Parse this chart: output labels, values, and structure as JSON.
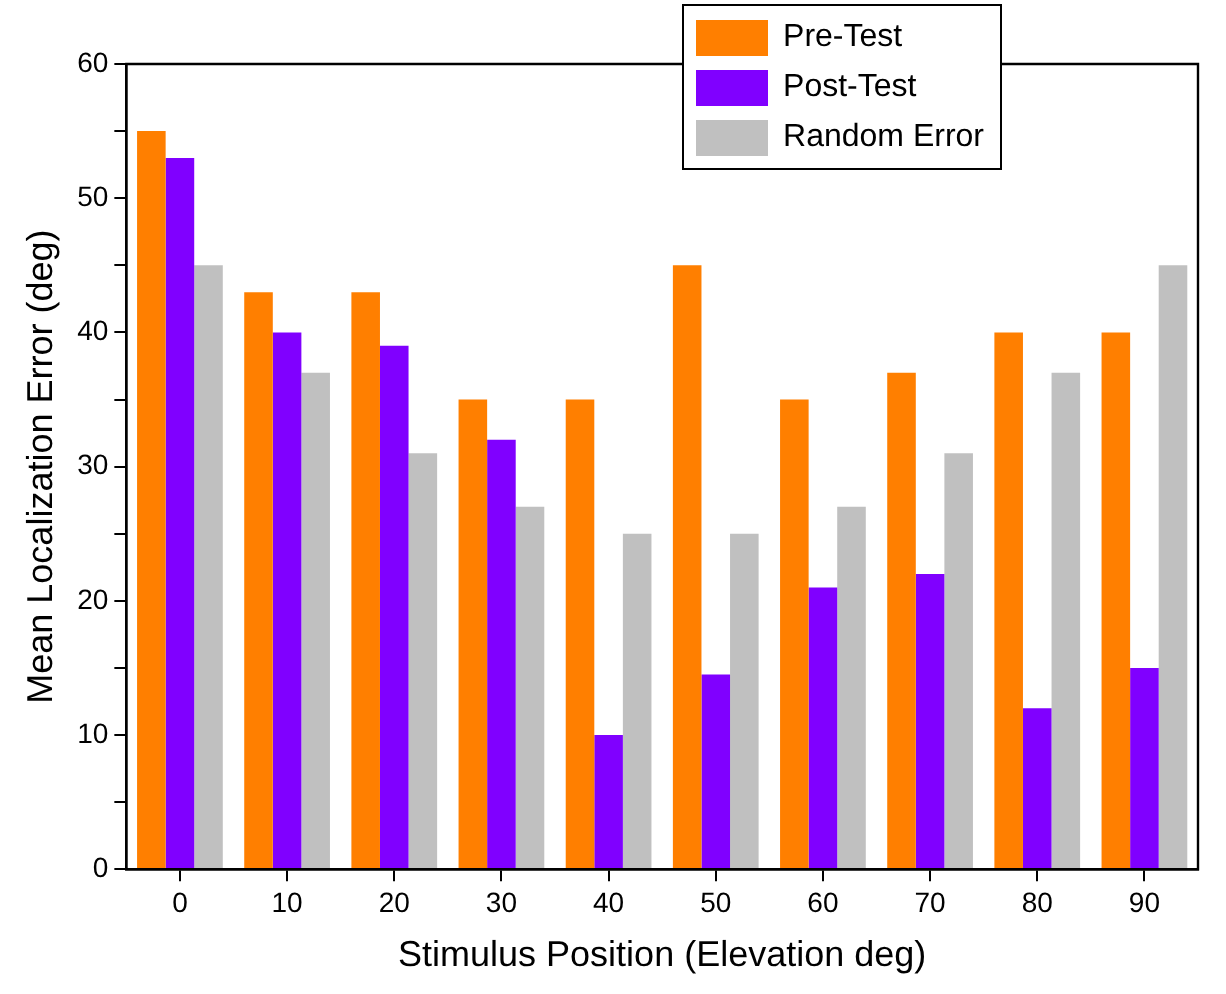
{
  "chart_data": {
    "type": "bar",
    "xlabel": "Stimulus Position (Elevation deg)",
    "ylabel": "Mean Localization Error (deg)",
    "categories": [
      "0",
      "10",
      "20",
      "30",
      "40",
      "50",
      "60",
      "70",
      "80",
      "90"
    ],
    "series": [
      {
        "name": "Pre-Test",
        "color": "#ff7f00",
        "values": [
          55,
          43,
          43,
          35,
          35,
          45,
          35,
          37,
          40,
          40
        ]
      },
      {
        "name": "Post-Test",
        "color": "#8000ff",
        "values": [
          53,
          40,
          39,
          32,
          10,
          14.5,
          21,
          22,
          12,
          15
        ]
      },
      {
        "name": "Random Error",
        "color": "#c0c0c0",
        "values": [
          45,
          37,
          31,
          27,
          25,
          25,
          27,
          31,
          37,
          45
        ]
      }
    ],
    "ylim": [
      0,
      60
    ],
    "yticks": [
      0,
      {
        "value": 5,
        "label": null
      },
      10,
      {
        "value": 15,
        "label": null
      },
      20,
      {
        "value": 25,
        "label": null
      },
      30,
      {
        "value": 35,
        "label": null
      },
      40,
      {
        "value": 45,
        "label": null
      },
      50,
      {
        "value": 55,
        "label": null
      },
      60
    ],
    "grid": false,
    "legend": "top right"
  }
}
